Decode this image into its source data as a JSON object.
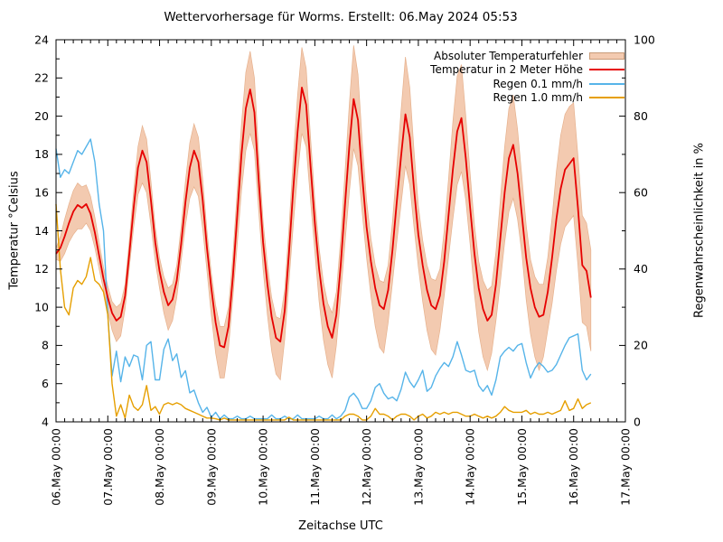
{
  "title": "Wettervorhersage für Worms. Erstellt: 06.May 2024 05:53",
  "axes": {
    "x": {
      "label": "Zeitachse UTC",
      "tick_labels": [
        "06.May 00:00",
        "07.May 00:00",
        "08.May 00:00",
        "09.May 00:00",
        "10.May 00:00",
        "11.May 00:00",
        "12.May 00:00",
        "13.May 00:00",
        "14.May 00:00",
        "15.May 00:00",
        "16.May 00:00",
        "17.May 00:00"
      ],
      "major_step_hours": 24,
      "minor_step_hours": 4,
      "range_hours": [
        0,
        264
      ]
    },
    "y_left": {
      "label": "Temperatur °Celsius",
      "ticks": [
        4,
        6,
        8,
        10,
        12,
        14,
        16,
        18,
        20,
        22,
        24
      ],
      "minor_step": 1,
      "range": [
        4,
        24
      ]
    },
    "y_right": {
      "label": "Regenwahrscheinlichkeit in %",
      "ticks": [
        0,
        20,
        40,
        60,
        80,
        100
      ],
      "minor_step": 10,
      "range": [
        0,
        100
      ]
    }
  },
  "legend": [
    {
      "label": "Absoluter Temperaturfehler",
      "kind": "band",
      "color": "#f3cab0",
      "border": "#c89b78"
    },
    {
      "label": "Temperatur in 2 Meter Höhe",
      "kind": "line",
      "color": "#e60000"
    },
    {
      "label": "Regen 0.1 mm/h",
      "kind": "line",
      "color": "#56b4e9"
    },
    {
      "label": "Regen 1.0 mm/h",
      "kind": "line",
      "color": "#e69f00"
    }
  ],
  "chart_data": {
    "type": "line",
    "title": "Wettervorhersage für Worms. Erstellt: 06.May 2024 05:53",
    "xlabel": "Zeitachse UTC",
    "x_start": "06.May 00:00 UTC",
    "x_end_of_data": "16.May 08:00 UTC",
    "x_step_hours": 2,
    "x_axis_total_hours": 264,
    "grid": false,
    "legend_position": "top-right-inside",
    "series": [
      {
        "name": "Absoluter Temperaturfehler",
        "axis": "left",
        "kind": "band",
        "color": "#f3cab0",
        "edge_color": "#e6b18d",
        "upper": [
          13.1,
          13.7,
          14.6,
          15.4,
          16.1,
          16.5,
          16.3,
          16.4,
          15.8,
          14.7,
          13.4,
          12.1,
          11.1,
          10.3,
          10.0,
          10.2,
          11.2,
          13.5,
          16.1,
          18.4,
          19.5,
          18.8,
          16.6,
          14.2,
          12.6,
          11.6,
          11.0,
          11.2,
          12.2,
          14.2,
          16.6,
          18.6,
          19.6,
          18.9,
          16.7,
          14.0,
          11.8,
          10.1,
          9.0,
          9.0,
          10.0,
          12.7,
          16.1,
          19.6,
          22.3,
          23.4,
          22.0,
          18.0,
          14.5,
          12.2,
          10.5,
          9.5,
          9.4,
          10.9,
          14.1,
          17.8,
          21.1,
          23.6,
          22.5,
          18.9,
          15.6,
          13.1,
          11.3,
          10.2,
          9.7,
          10.8,
          13.6,
          17.1,
          20.6,
          23.7,
          22.2,
          18.6,
          15.6,
          13.6,
          12.2,
          11.4,
          11.3,
          12.2,
          14.5,
          17.3,
          20.3,
          23.1,
          21.5,
          18.2,
          15.3,
          13.5,
          12.2,
          11.5,
          11.4,
          12.0,
          14.0,
          16.7,
          19.7,
          22.1,
          22.7,
          20.0,
          17.0,
          14.3,
          12.4,
          11.4,
          10.9,
          11.1,
          12.9,
          15.6,
          18.4,
          20.4,
          21.1,
          19.3,
          16.8,
          14.3,
          12.5,
          11.6,
          11.2,
          11.2,
          12.6,
          14.7,
          17.1,
          19.0,
          20.1,
          20.5,
          20.7,
          17.9,
          14.8,
          14.4,
          13.0
        ],
        "lower": [
          12.5,
          12.4,
          12.8,
          13.4,
          13.8,
          14.1,
          14.1,
          14.4,
          14.0,
          13.1,
          12.0,
          10.9,
          9.8,
          8.8,
          8.2,
          8.5,
          9.9,
          12.1,
          14.2,
          15.9,
          16.5,
          16.0,
          14.3,
          12.4,
          11.0,
          9.7,
          8.8,
          9.3,
          10.5,
          12.4,
          14.3,
          15.7,
          16.3,
          15.8,
          14.1,
          11.9,
          9.6,
          7.6,
          6.3,
          6.3,
          7.9,
          10.5,
          13.3,
          16.1,
          18.2,
          19.1,
          18.2,
          15.0,
          12.0,
          9.6,
          7.7,
          6.5,
          6.2,
          8.3,
          11.3,
          14.3,
          17.0,
          19.1,
          18.4,
          15.6,
          12.9,
          10.3,
          8.3,
          7.0,
          6.3,
          8.0,
          10.6,
          13.4,
          16.0,
          18.3,
          17.4,
          14.9,
          12.6,
          10.6,
          9.0,
          7.9,
          7.6,
          9.2,
          11.3,
          13.4,
          15.4,
          17.4,
          16.4,
          14.2,
          12.1,
          10.3,
          8.8,
          7.8,
          7.5,
          8.8,
          10.6,
          12.6,
          14.6,
          16.4,
          17.1,
          15.6,
          13.3,
          10.7,
          8.7,
          7.4,
          6.7,
          7.6,
          9.3,
          11.3,
          13.4,
          15.0,
          15.7,
          14.6,
          12.8,
          10.4,
          8.6,
          7.4,
          6.7,
          7.4,
          8.8,
          10.2,
          11.9,
          13.3,
          14.2,
          14.5,
          14.8,
          12.2,
          9.2,
          9.0,
          7.7
        ]
      },
      {
        "name": "Regen 0.1 mm/h",
        "axis": "right",
        "kind": "line",
        "color": "#56b4e9",
        "values": [
          71.5,
          64,
          66,
          65,
          68,
          71,
          70,
          72,
          74,
          68,
          57,
          50,
          28,
          12,
          18.5,
          10.5,
          17,
          14.5,
          17.5,
          17,
          11,
          20,
          21,
          11,
          11,
          19,
          21.7,
          16,
          17.8,
          11.6,
          13.4,
          7.6,
          8.3,
          5,
          2.5,
          3.8,
          1.2,
          2.5,
          0.8,
          1.8,
          0.8,
          0.8,
          1.5,
          0.8,
          0.8,
          1.5,
          0.8,
          0.8,
          0.8,
          0.8,
          1.8,
          0.8,
          0.8,
          1.5,
          0.8,
          0.8,
          1.8,
          0.8,
          0.8,
          0.8,
          0.8,
          1.5,
          0.8,
          0.8,
          1.8,
          0.8,
          1.5,
          3,
          6.5,
          7.5,
          6,
          3.5,
          3.5,
          5.5,
          9,
          10,
          7.5,
          6,
          6.5,
          5.5,
          8.5,
          13,
          10.5,
          9,
          11,
          13.5,
          8,
          9,
          12,
          14,
          15.5,
          14.5,
          17,
          21,
          17.5,
          13.5,
          13,
          13.5,
          9.5,
          8,
          9.5,
          7,
          11,
          17,
          18.5,
          19.5,
          18.5,
          20,
          20.5,
          15.5,
          11.5,
          14,
          15.5,
          14.5,
          13,
          13.5,
          15,
          17.5,
          20,
          22,
          22.5,
          23,
          13.5,
          11,
          12.5
        ]
      },
      {
        "name": "Regen 1.0 mm/h",
        "axis": "right",
        "kind": "line",
        "color": "#e69f00",
        "values": [
          57,
          40,
          30,
          28,
          35,
          37,
          36,
          38,
          43,
          37,
          36,
          34,
          28,
          10,
          1.5,
          4.5,
          1,
          7,
          4,
          3,
          4.5,
          9.5,
          3,
          4,
          2,
          4.5,
          5,
          4.5,
          5,
          4.5,
          3.5,
          3,
          2.5,
          2,
          1.5,
          1,
          1,
          0.8,
          0.5,
          1,
          0.5,
          0.5,
          0.5,
          0.5,
          0.5,
          0.5,
          0.5,
          0.5,
          0.5,
          0.5,
          0.5,
          0.5,
          0.5,
          0.5,
          1.2,
          0.5,
          0.5,
          0.5,
          0.5,
          0.5,
          0.5,
          0.5,
          0.5,
          0.5,
          0.5,
          0.5,
          0.5,
          1.5,
          2,
          2,
          1.5,
          0.5,
          0.5,
          1.5,
          3.5,
          2,
          2,
          1.5,
          0.5,
          1.5,
          2,
          2,
          1.5,
          0.5,
          1.5,
          2,
          1,
          1.5,
          2.5,
          2,
          2.5,
          2,
          2.5,
          2.5,
          2,
          1.5,
          1.5,
          2,
          1.5,
          1,
          1.5,
          1,
          1.5,
          2.5,
          4,
          3,
          2.5,
          2.5,
          2.5,
          3,
          2,
          2.5,
          2,
          2,
          2.5,
          2,
          2.5,
          3,
          5.5,
          3,
          3.5,
          6,
          3.5,
          4.5,
          5
        ]
      },
      {
        "name": "Temperatur in 2 Meter Höhe",
        "axis": "left",
        "kind": "line",
        "color": "#e60000",
        "values": [
          12.8,
          13.1,
          13.7,
          14.4,
          15.0,
          15.35,
          15.2,
          15.4,
          14.9,
          13.9,
          12.7,
          11.5,
          10.5,
          9.7,
          9.3,
          9.5,
          10.6,
          12.8,
          15.2,
          17.3,
          18.2,
          17.6,
          15.6,
          13.4,
          11.9,
          10.8,
          10.1,
          10.4,
          11.4,
          13.3,
          15.5,
          17.3,
          18.2,
          17.6,
          15.6,
          13.1,
          11.0,
          9.2,
          8.0,
          7.9,
          9.0,
          11.6,
          14.8,
          18.0,
          20.4,
          21.4,
          20.2,
          16.6,
          13.4,
          11.2,
          9.5,
          8.4,
          8.2,
          9.8,
          12.8,
          16.2,
          19.2,
          21.5,
          20.6,
          17.4,
          14.4,
          12.0,
          10.2,
          9.0,
          8.4,
          9.6,
          12.2,
          15.4,
          18.4,
          20.9,
          19.8,
          16.8,
          14.2,
          12.4,
          11.0,
          10.1,
          9.9,
          10.9,
          13.0,
          15.5,
          17.9,
          20.1,
          18.9,
          16.2,
          13.8,
          12.2,
          10.9,
          10.1,
          9.9,
          10.6,
          12.4,
          14.8,
          17.2,
          19.2,
          19.9,
          17.8,
          15.2,
          12.8,
          11.0,
          9.9,
          9.3,
          9.6,
          11.2,
          13.6,
          16.0,
          17.8,
          18.5,
          17.0,
          14.8,
          12.6,
          11.0,
          10.0,
          9.5,
          9.6,
          10.8,
          12.6,
          14.6,
          16.2,
          17.2,
          17.5,
          17.8,
          15.2,
          12.2,
          11.9,
          10.5
        ]
      }
    ]
  }
}
